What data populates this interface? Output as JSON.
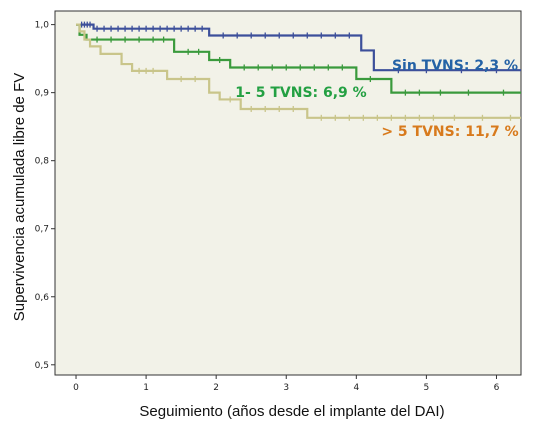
{
  "chart_data": {
    "type": "line",
    "title": "",
    "xlabel": "Seguimiento (años desde el implante del DAI)",
    "ylabel": "Supervivencia acumulada libre de FV",
    "xlim": [
      -0.3,
      6.35
    ],
    "ylim": [
      0.485,
      1.02
    ],
    "x_ticks": [
      0,
      1,
      2,
      3,
      4,
      5,
      6
    ],
    "x_tick_labels": [
      "0",
      "1",
      "2",
      "3",
      "4",
      "5",
      "6"
    ],
    "y_ticks": [
      0.5,
      0.6,
      0.7,
      0.8,
      0.9,
      1.0
    ],
    "y_tick_labels": [
      "0,5",
      "0,6",
      "0,7",
      "0,8",
      "0,9",
      "1,0"
    ],
    "grid": false,
    "background": "#f2f2e8",
    "series": [
      {
        "name": "Sin TVNS: 2,3 %",
        "color": "#3c4f9a",
        "label_color": "#2462a6",
        "steps": [
          [
            0,
            1.0
          ],
          [
            0.25,
            0.994
          ],
          [
            1.9,
            0.984
          ],
          [
            4.07,
            0.962
          ],
          [
            4.25,
            0.933
          ],
          [
            6.35,
            0.933
          ]
        ],
        "censored": [
          0.08,
          0.12,
          0.16,
          0.2,
          0.3,
          0.4,
          0.5,
          0.6,
          0.7,
          0.8,
          0.9,
          1.0,
          1.1,
          1.2,
          1.3,
          1.4,
          1.5,
          1.6,
          1.7,
          1.8,
          2.1,
          2.3,
          2.5,
          2.7,
          2.9,
          3.1,
          3.3,
          3.5,
          3.7,
          3.9,
          4.6,
          5.0,
          5.5,
          6.0
        ]
      },
      {
        "name": "1- 5 TVNS: 6,9 %",
        "color": "#3a9a3c",
        "label_color": "#23a042",
        "steps": [
          [
            0,
            1.0
          ],
          [
            0.05,
            0.985
          ],
          [
            0.15,
            0.978
          ],
          [
            1.4,
            0.96
          ],
          [
            1.9,
            0.948
          ],
          [
            2.2,
            0.937
          ],
          [
            4.0,
            0.92
          ],
          [
            4.5,
            0.9
          ],
          [
            6.35,
            0.9
          ]
        ],
        "censored": [
          0.3,
          0.5,
          0.7,
          0.9,
          1.1,
          1.25,
          1.6,
          1.75,
          2.05,
          2.4,
          2.6,
          2.8,
          3.0,
          3.2,
          3.4,
          3.6,
          3.8,
          4.2,
          4.7,
          4.9,
          5.2,
          5.6,
          6.1
        ]
      },
      {
        "name": "> 5 TVNS: 11,7 %",
        "color": "#c9c58a",
        "label_color": "#d87a1c",
        "steps": [
          [
            0,
            1.0
          ],
          [
            0.05,
            0.99
          ],
          [
            0.12,
            0.978
          ],
          [
            0.2,
            0.968
          ],
          [
            0.35,
            0.957
          ],
          [
            0.65,
            0.942
          ],
          [
            0.8,
            0.932
          ],
          [
            1.3,
            0.92
          ],
          [
            1.9,
            0.9
          ],
          [
            2.05,
            0.89
          ],
          [
            2.35,
            0.876
          ],
          [
            3.3,
            0.863
          ],
          [
            6.35,
            0.863
          ]
        ],
        "censored": [
          0.9,
          1.0,
          1.1,
          1.5,
          1.7,
          2.2,
          2.5,
          2.7,
          2.9,
          3.1,
          3.5,
          3.7,
          3.9,
          4.1,
          4.3,
          4.5,
          4.7,
          4.9,
          5.1,
          5.4,
          5.8,
          6.2
        ]
      }
    ]
  }
}
